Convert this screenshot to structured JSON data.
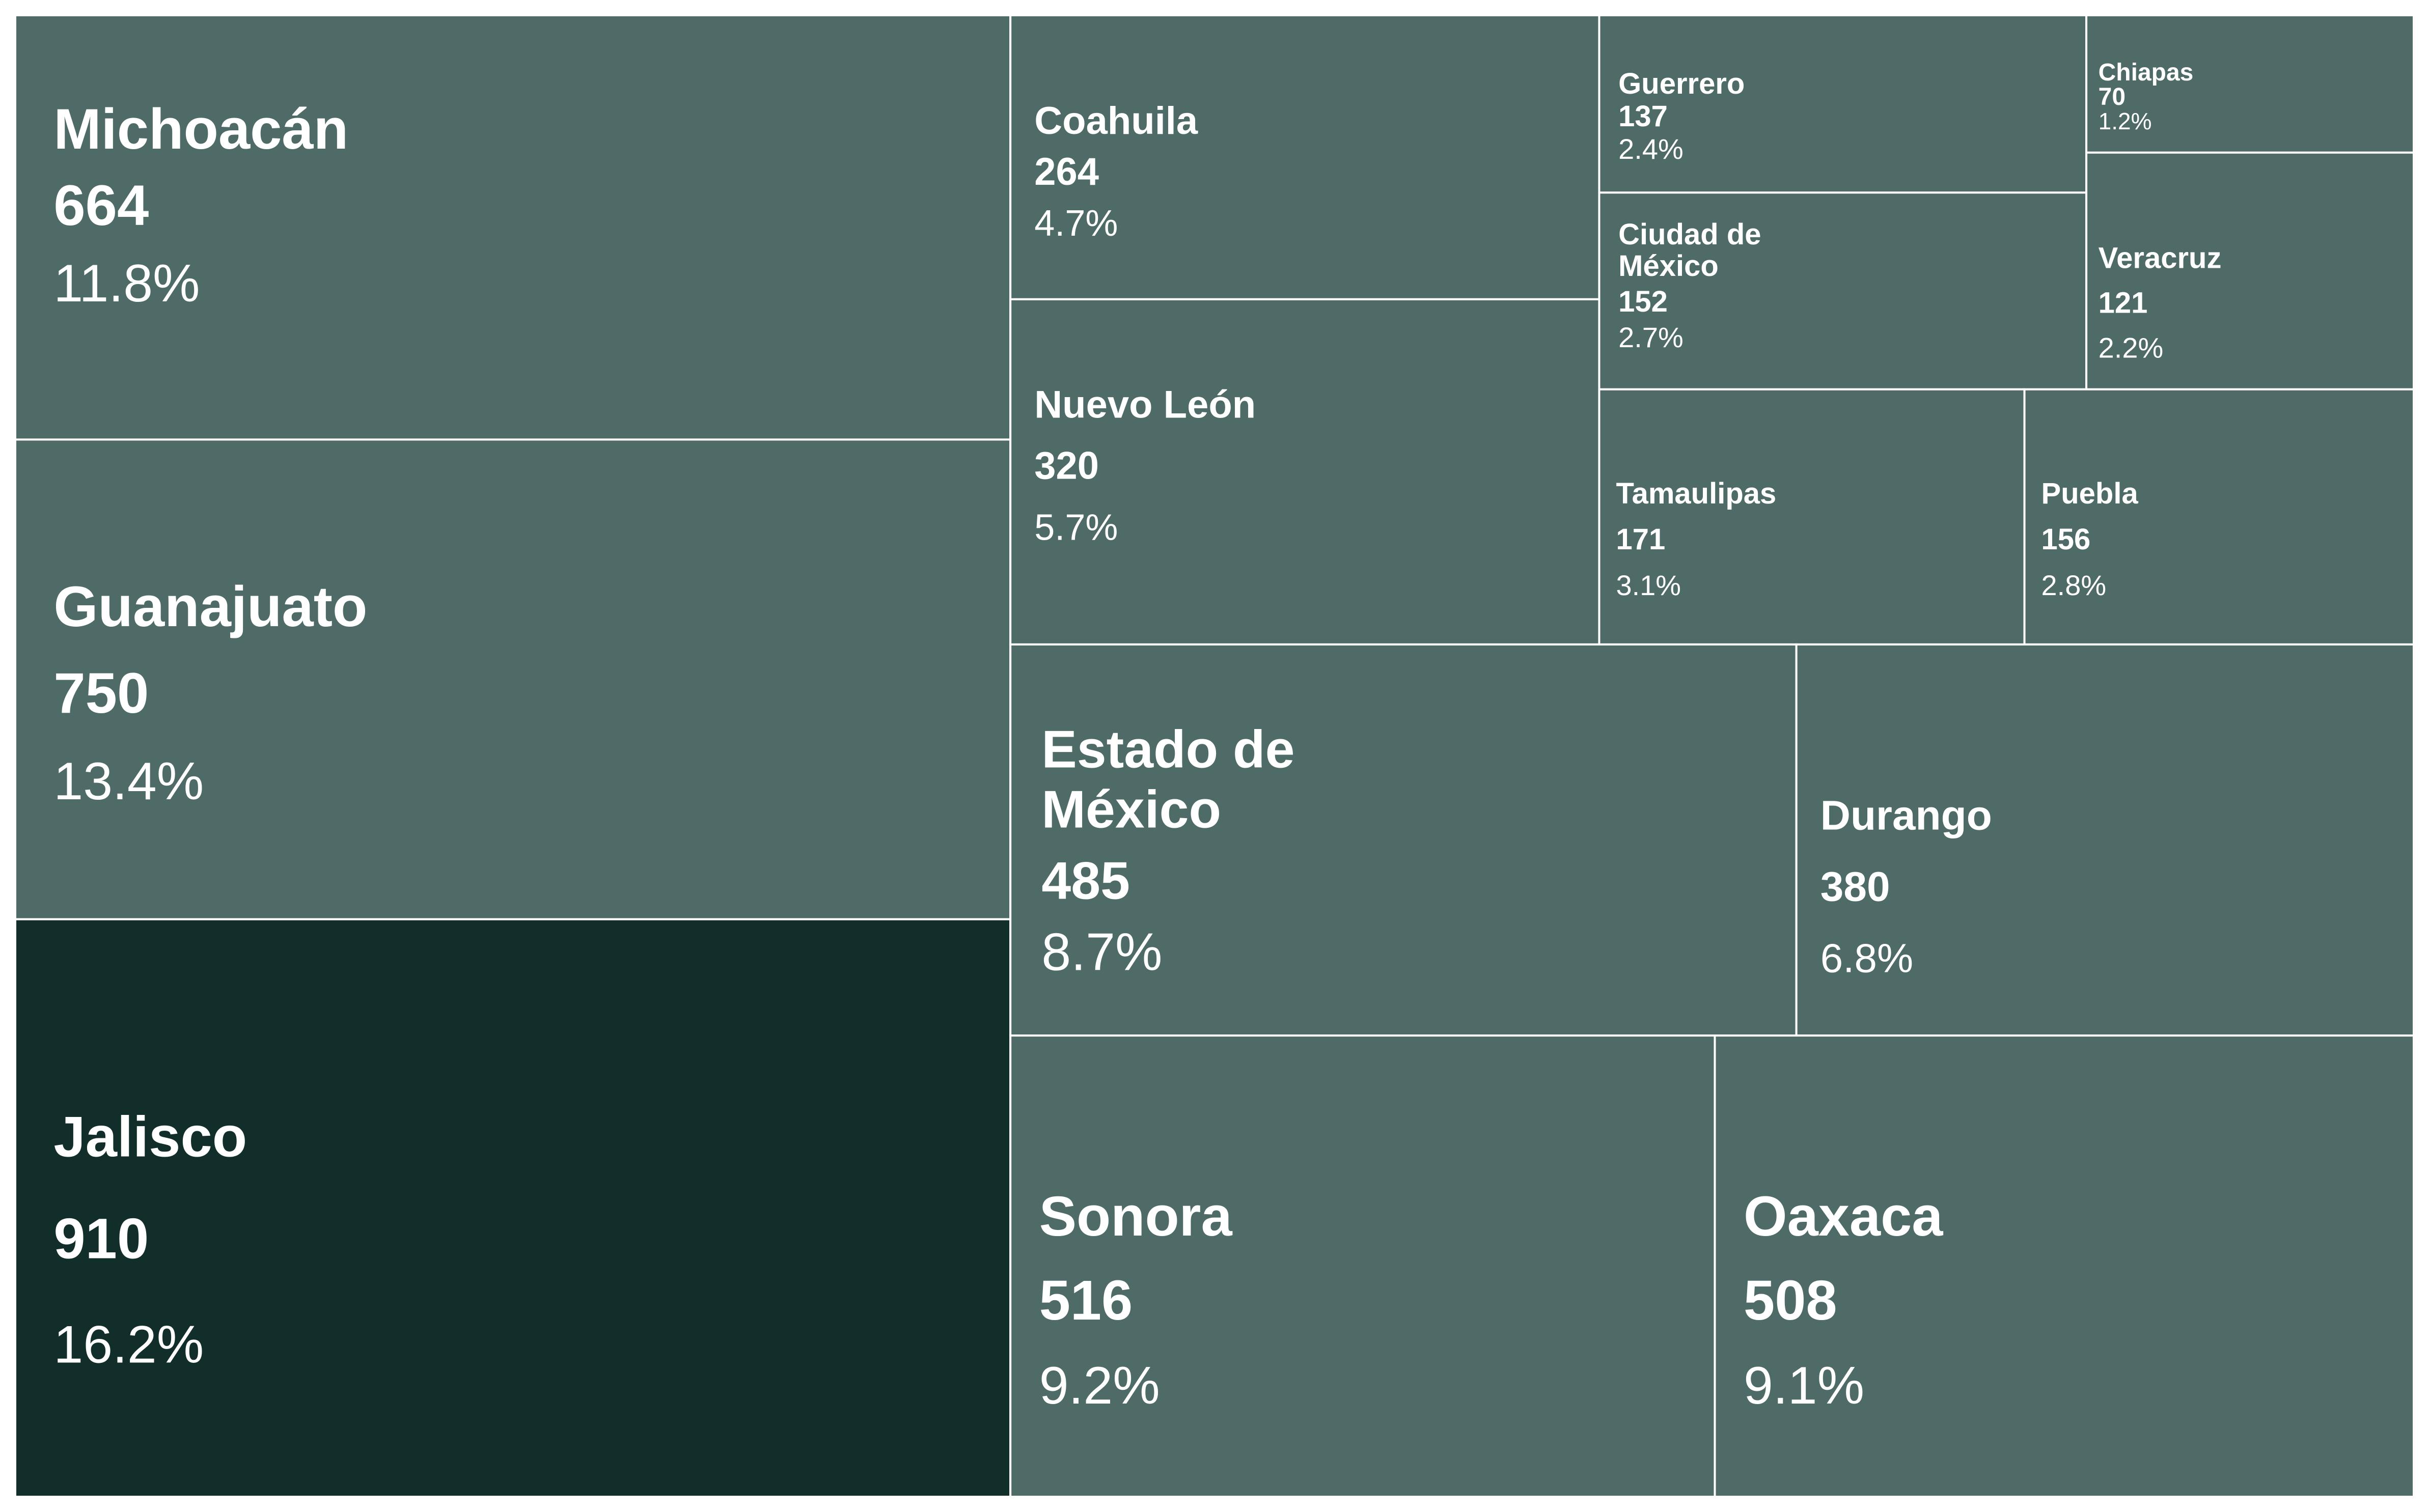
{
  "chart_data": {
    "type": "treemap",
    "colors": {
      "default_tile": "#4F6B67",
      "highlight_tile": "#122E2A",
      "tile_border": "#FFFFFF",
      "text": "#FFFFFF"
    },
    "highlighted": "Jalisco",
    "items": [
      {
        "name": "Michoacán",
        "value": 664,
        "pct": "11.8%"
      },
      {
        "name": "Guanajuato",
        "value": 750,
        "pct": "13.4%"
      },
      {
        "name": "Jalisco",
        "value": 910,
        "pct": "16.2%"
      },
      {
        "name": "Coahuila",
        "value": 264,
        "pct": "4.7%"
      },
      {
        "name": "Nuevo León",
        "value": 320,
        "pct": "5.7%"
      },
      {
        "name": "Guerrero",
        "value": 137,
        "pct": "2.4%"
      },
      {
        "name": "Chiapas",
        "value": 70,
        "pct": "1.2%"
      },
      {
        "name": "Ciudad de México",
        "value": 152,
        "pct": "2.7%"
      },
      {
        "name": "Veracruz",
        "value": 121,
        "pct": "2.2%"
      },
      {
        "name": "Tamaulipas",
        "value": 171,
        "pct": "3.1%"
      },
      {
        "name": "Puebla",
        "value": 156,
        "pct": "2.8%"
      },
      {
        "name": "Estado de México",
        "value": 485,
        "pct": "8.7%"
      },
      {
        "name": "Durango",
        "value": 380,
        "pct": "6.8%"
      },
      {
        "name": "Sonora",
        "value": 516,
        "pct": "9.2%"
      },
      {
        "name": "Oaxaca",
        "value": 508,
        "pct": "9.1%"
      }
    ]
  }
}
